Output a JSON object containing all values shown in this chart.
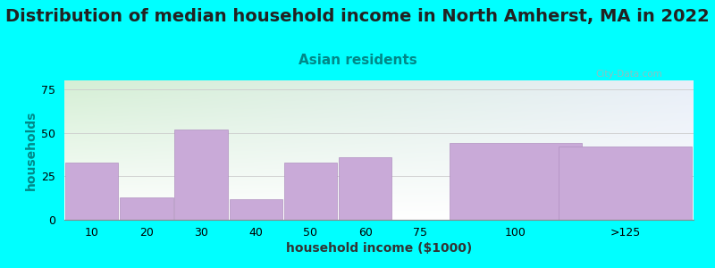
{
  "title": "Distribution of median household income in North Amherst, MA in 2022",
  "subtitle": "Asian residents",
  "xlabel": "household income ($1000)",
  "ylabel": "households",
  "background_color": "#00FFFF",
  "bar_color": "#C9AAD8",
  "bar_edge_color": "#B090C0",
  "ylim": [
    0,
    80
  ],
  "yticks": [
    0,
    25,
    50,
    75
  ],
  "title_fontsize": 14,
  "subtitle_fontsize": 11,
  "axis_label_fontsize": 10,
  "tick_fontsize": 9,
  "title_color": "#222222",
  "subtitle_color": "#008888",
  "ylabel_color": "#008888",
  "xlabel_color": "#333333",
  "bar_lefts": [
    0,
    1,
    2,
    3,
    4,
    5,
    7,
    9
  ],
  "bar_widths": [
    1,
    1,
    1,
    1,
    1,
    1,
    2.5,
    2.5
  ],
  "bar_vals": [
    33,
    13,
    52,
    12,
    33,
    36,
    44,
    42
  ],
  "tick_positions": [
    0.5,
    1.5,
    2.5,
    3.5,
    4.5,
    5.5,
    6.5,
    8.25,
    10.25
  ],
  "tick_labels": [
    "10",
    "20",
    "30",
    "40",
    "50",
    "60",
    "75",
    "100",
    ">125"
  ],
  "xlim": [
    0,
    11.5
  ],
  "plot_bg_left_top": "#d8f0d8",
  "plot_bg_right_top": "#e8f0f8",
  "plot_bg_bottom": "#ffffff"
}
